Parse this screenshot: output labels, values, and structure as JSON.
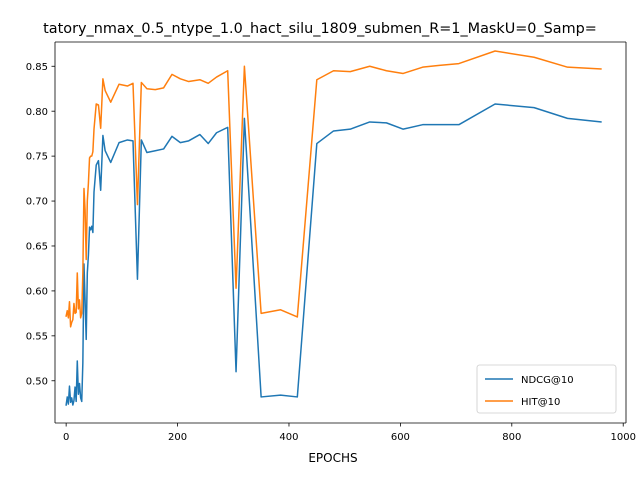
{
  "chart_data": {
    "type": "line",
    "title": "tatory_nmax_0.5_ntype_1.0_hact_silu_1809_submen_R=1_MaskU=0_Samp=",
    "xlabel": "EPOCHS",
    "ylabel": "",
    "xlim": [
      -20,
      1005
    ],
    "ylim": [
      0.453,
      0.877
    ],
    "xticks": [
      0,
      200,
      400,
      600,
      800,
      1000
    ],
    "yticks": [
      0.5,
      0.55,
      0.6,
      0.65,
      0.7,
      0.75,
      0.8,
      0.85
    ],
    "grid": false,
    "legend": "lower-right",
    "series": [
      {
        "name": "NDCG@10",
        "color": "#1f77b4",
        "x": [
          0,
          2,
          4,
          6,
          8,
          10,
          12,
          14,
          16,
          18,
          20,
          22,
          24,
          26,
          28,
          30,
          32,
          34,
          36,
          38,
          40,
          42,
          44,
          46,
          48,
          50,
          54,
          58,
          62,
          66,
          70,
          80,
          95,
          110,
          120,
          128,
          135,
          145,
          160,
          175,
          190,
          205,
          220,
          240,
          255,
          270,
          290,
          305,
          320,
          350,
          385,
          415,
          450,
          480,
          510,
          545,
          575,
          605,
          640,
          670,
          705,
          770,
          840,
          900,
          960
        ],
        "y": [
          0.473,
          0.482,
          0.474,
          0.494,
          0.476,
          0.481,
          0.473,
          0.478,
          0.493,
          0.477,
          0.522,
          0.485,
          0.497,
          0.481,
          0.477,
          0.52,
          0.63,
          0.59,
          0.546,
          0.62,
          0.64,
          0.671,
          0.668,
          0.672,
          0.665,
          0.71,
          0.74,
          0.745,
          0.712,
          0.773,
          0.756,
          0.743,
          0.765,
          0.768,
          0.767,
          0.613,
          0.768,
          0.754,
          0.756,
          0.758,
          0.772,
          0.765,
          0.767,
          0.774,
          0.764,
          0.776,
          0.782,
          0.51,
          0.792,
          0.482,
          0.484,
          0.482,
          0.764,
          0.778,
          0.78,
          0.788,
          0.787,
          0.78,
          0.785,
          0.785,
          0.785,
          0.808,
          0.804,
          0.792,
          0.788
        ]
      },
      {
        "name": "HIT@10",
        "color": "#ff7f0e",
        "x": [
          0,
          2,
          4,
          6,
          8,
          10,
          12,
          14,
          16,
          18,
          20,
          22,
          24,
          26,
          28,
          30,
          32,
          34,
          36,
          38,
          40,
          42,
          44,
          46,
          48,
          50,
          54,
          58,
          62,
          66,
          70,
          80,
          95,
          110,
          120,
          128,
          135,
          145,
          160,
          175,
          190,
          205,
          220,
          240,
          255,
          270,
          290,
          305,
          320,
          350,
          385,
          415,
          450,
          480,
          510,
          545,
          575,
          605,
          640,
          670,
          705,
          770,
          840,
          900,
          960
        ],
        "y": [
          0.572,
          0.578,
          0.57,
          0.588,
          0.56,
          0.565,
          0.568,
          0.586,
          0.575,
          0.576,
          0.62,
          0.58,
          0.59,
          0.57,
          0.575,
          0.62,
          0.714,
          0.69,
          0.635,
          0.7,
          0.72,
          0.748,
          0.75,
          0.75,
          0.755,
          0.78,
          0.808,
          0.807,
          0.781,
          0.836,
          0.823,
          0.81,
          0.83,
          0.828,
          0.831,
          0.696,
          0.832,
          0.825,
          0.824,
          0.826,
          0.841,
          0.836,
          0.833,
          0.835,
          0.831,
          0.838,
          0.845,
          0.603,
          0.85,
          0.575,
          0.579,
          0.571,
          0.835,
          0.845,
          0.844,
          0.85,
          0.845,
          0.842,
          0.849,
          0.851,
          0.853,
          0.867,
          0.86,
          0.849,
          0.847
        ]
      }
    ]
  }
}
